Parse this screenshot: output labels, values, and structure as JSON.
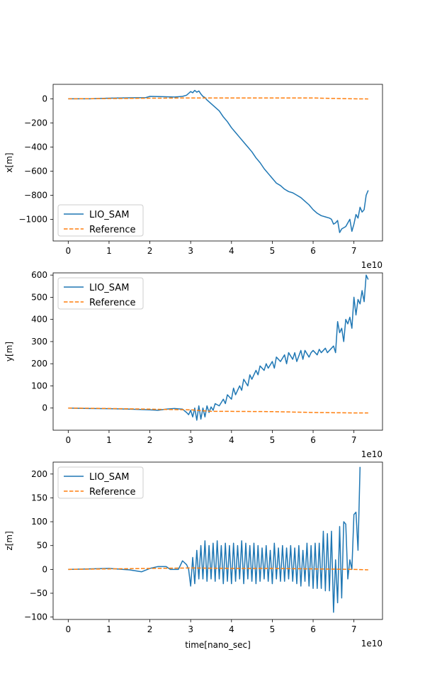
{
  "colors": {
    "lio_sam": "#1f77b4",
    "reference": "#ff7f0e"
  },
  "chart_data": [
    {
      "type": "line",
      "ylabel": "x[m]",
      "xlabel": "",
      "offset_text": "1e10",
      "xlim": [
        -0.37,
        7.7
      ],
      "ylim": [
        -1180,
        120
      ],
      "xticks": [
        0,
        1,
        2,
        3,
        4,
        5,
        6,
        7
      ],
      "yticks": [
        -1000,
        -800,
        -600,
        -400,
        -200,
        0
      ],
      "ytick_labels": [
        "−1000",
        "−800",
        "−600",
        "−400",
        "−200",
        "0"
      ],
      "legend": {
        "location": "lower-left",
        "entries": [
          "LIO_SAM",
          "Reference"
        ]
      },
      "series": [
        {
          "name": "LIO_SAM",
          "style": "solid",
          "x": [
            0,
            0.5,
            1.0,
            1.5,
            1.9,
            2.0,
            2.3,
            2.6,
            2.8,
            2.9,
            2.95,
            3.0,
            3.05,
            3.1,
            3.15,
            3.2,
            3.25,
            3.3,
            3.35,
            3.4,
            3.5,
            3.6,
            3.7,
            3.8,
            3.9,
            4.0,
            4.1,
            4.2,
            4.3,
            4.4,
            4.5,
            4.6,
            4.7,
            4.8,
            4.9,
            5.0,
            5.1,
            5.2,
            5.3,
            5.4,
            5.5,
            5.6,
            5.7,
            5.8,
            5.9,
            6.0,
            6.1,
            6.2,
            6.3,
            6.4,
            6.45,
            6.5,
            6.55,
            6.6,
            6.65,
            6.7,
            6.8,
            6.9,
            6.95,
            7.0,
            7.05,
            7.1,
            7.15,
            7.2,
            7.25,
            7.3,
            7.35
          ],
          "y": [
            0,
            0,
            5,
            8,
            10,
            20,
            18,
            15,
            20,
            30,
            45,
            60,
            50,
            70,
            55,
            65,
            40,
            20,
            10,
            -10,
            -40,
            -70,
            -100,
            -150,
            -190,
            -240,
            -280,
            -320,
            -360,
            -400,
            -440,
            -490,
            -530,
            -580,
            -620,
            -660,
            -700,
            -720,
            -750,
            -770,
            -780,
            -800,
            -820,
            -850,
            -880,
            -920,
            -950,
            -970,
            -980,
            -990,
            -1000,
            -1040,
            -1030,
            -1010,
            -1110,
            -1080,
            -1060,
            -1000,
            -1100,
            -1040,
            -960,
            -990,
            -900,
            -940,
            -920,
            -800,
            -760
          ]
        },
        {
          "name": "Reference",
          "style": "dashed",
          "x": [
            0,
            1,
            2,
            3,
            4,
            5,
            6,
            6.5,
            7,
            7.35
          ],
          "y": [
            0,
            2,
            5,
            7,
            7,
            7,
            7,
            3,
            0,
            -1
          ]
        }
      ]
    },
    {
      "type": "line",
      "ylabel": "y[m]",
      "xlabel": "",
      "offset_text": "1e10",
      "xlim": [
        -0.37,
        7.7
      ],
      "ylim": [
        -100,
        610
      ],
      "xticks": [
        0,
        1,
        2,
        3,
        4,
        5,
        6,
        7
      ],
      "yticks": [
        0,
        100,
        200,
        300,
        400,
        500,
        600
      ],
      "ytick_labels": [
        "0",
        "100",
        "200",
        "300",
        "400",
        "500",
        "600"
      ],
      "legend": {
        "location": "upper-left",
        "entries": [
          "LIO_SAM",
          "Reference"
        ]
      },
      "series": [
        {
          "name": "LIO_SAM",
          "style": "solid",
          "x": [
            0,
            0.5,
            1.0,
            1.5,
            2.0,
            2.2,
            2.4,
            2.6,
            2.8,
            2.9,
            2.95,
            3.0,
            3.05,
            3.1,
            3.15,
            3.2,
            3.25,
            3.3,
            3.35,
            3.4,
            3.45,
            3.5,
            3.55,
            3.6,
            3.7,
            3.8,
            3.85,
            3.9,
            4.0,
            4.05,
            4.1,
            4.2,
            4.25,
            4.3,
            4.4,
            4.45,
            4.5,
            4.6,
            4.65,
            4.7,
            4.8,
            4.85,
            4.9,
            5.0,
            5.05,
            5.1,
            5.2,
            5.3,
            5.35,
            5.4,
            5.5,
            5.55,
            5.6,
            5.7,
            5.75,
            5.8,
            5.9,
            5.95,
            6.0,
            6.1,
            6.15,
            6.2,
            6.3,
            6.35,
            6.4,
            6.5,
            6.55,
            6.6,
            6.65,
            6.7,
            6.75,
            6.8,
            6.85,
            6.9,
            6.95,
            7.0,
            7.05,
            7.1,
            7.15,
            7.2,
            7.25,
            7.3,
            7.35
          ],
          "y": [
            0,
            -2,
            -3,
            -5,
            -8,
            -10,
            -5,
            -2,
            -5,
            -20,
            -30,
            -10,
            -40,
            0,
            -55,
            10,
            -50,
            0,
            -40,
            10,
            -20,
            5,
            -10,
            20,
            10,
            40,
            20,
            60,
            40,
            90,
            60,
            100,
            80,
            130,
            100,
            150,
            130,
            170,
            150,
            190,
            170,
            200,
            180,
            210,
            180,
            230,
            210,
            240,
            200,
            250,
            220,
            250,
            210,
            260,
            220,
            260,
            230,
            250,
            260,
            240,
            265,
            250,
            270,
            250,
            260,
            280,
            250,
            390,
            340,
            360,
            300,
            400,
            380,
            410,
            360,
            500,
            420,
            490,
            470,
            530,
            480,
            600,
            580
          ]
        },
        {
          "name": "Reference",
          "style": "dashed",
          "x": [
            0,
            1,
            2,
            3,
            3.5,
            4,
            5,
            6,
            7,
            7.35
          ],
          "y": [
            0,
            -2,
            -5,
            -8,
            -15,
            -15,
            -16,
            -20,
            -22,
            -22
          ]
        }
      ]
    },
    {
      "type": "line",
      "ylabel": "z[m]",
      "xlabel": "time[nano_sec]",
      "offset_text": "1e10",
      "xlim": [
        -0.37,
        7.7
      ],
      "ylim": [
        -105,
        225
      ],
      "xticks": [
        0,
        1,
        2,
        3,
        4,
        5,
        6,
        7
      ],
      "yticks": [
        -100,
        -50,
        0,
        50,
        100,
        150,
        200
      ],
      "ytick_labels": [
        "−100",
        "−50",
        "0",
        "50",
        "100",
        "150",
        "200"
      ],
      "legend": {
        "location": "upper-left",
        "entries": [
          "LIO_SAM",
          "Reference"
        ]
      },
      "series": [
        {
          "name": "LIO_SAM",
          "style": "solid",
          "x": [
            0,
            0.5,
            1.0,
            1.5,
            1.8,
            2.0,
            2.2,
            2.4,
            2.5,
            2.7,
            2.8,
            2.9,
            2.95,
            3.0,
            3.05,
            3.1,
            3.15,
            3.2,
            3.25,
            3.3,
            3.35,
            3.4,
            3.45,
            3.5,
            3.55,
            3.6,
            3.65,
            3.7,
            3.75,
            3.8,
            3.85,
            3.9,
            3.95,
            4.0,
            4.05,
            4.1,
            4.15,
            4.2,
            4.25,
            4.3,
            4.35,
            4.4,
            4.45,
            4.5,
            4.55,
            4.6,
            4.65,
            4.7,
            4.75,
            4.8,
            4.85,
            4.9,
            4.95,
            5.0,
            5.05,
            5.1,
            5.15,
            5.2,
            5.25,
            5.3,
            5.35,
            5.4,
            5.45,
            5.5,
            5.55,
            5.6,
            5.65,
            5.7,
            5.75,
            5.8,
            5.85,
            5.9,
            5.95,
            6.0,
            6.05,
            6.1,
            6.15,
            6.2,
            6.25,
            6.3,
            6.35,
            6.4,
            6.45,
            6.5,
            6.55,
            6.6,
            6.65,
            6.7,
            6.75,
            6.8,
            6.85,
            6.9,
            6.95,
            7.0,
            7.05,
            7.1,
            7.15,
            7.2,
            7.25,
            7.3,
            7.35
          ],
          "y": [
            0,
            1,
            2,
            -1,
            -5,
            2,
            6,
            6,
            0,
            0,
            18,
            10,
            0,
            -35,
            25,
            -30,
            40,
            -20,
            50,
            -20,
            60,
            -25,
            50,
            -20,
            55,
            -25,
            60,
            -20,
            50,
            -30,
            55,
            -25,
            50,
            -30,
            55,
            -25,
            50,
            -20,
            60,
            -30,
            55,
            -20,
            50,
            -25,
            55,
            -30,
            50,
            -25,
            45,
            -20,
            50,
            -25,
            40,
            -30,
            55,
            -20,
            45,
            -25,
            50,
            -25,
            45,
            -20,
            50,
            -25,
            45,
            -30,
            50,
            -35,
            40,
            -25,
            55,
            -35,
            50,
            -40,
            55,
            -40,
            55,
            -40,
            80,
            -45,
            75,
            -45,
            80,
            -90,
            20,
            -70,
            90,
            -60,
            100,
            95,
            -20,
            20,
            0,
            115,
            120,
            40,
            215,
            0,
            0,
            0,
            0
          ],
          "trim_to": 97
        },
        {
          "name": "Reference",
          "style": "dashed",
          "x": [
            0,
            1,
            2,
            3,
            4,
            5,
            6,
            7,
            7.35
          ],
          "y": [
            0,
            1,
            2,
            3,
            2,
            2,
            1,
            0,
            -1
          ]
        }
      ]
    }
  ]
}
